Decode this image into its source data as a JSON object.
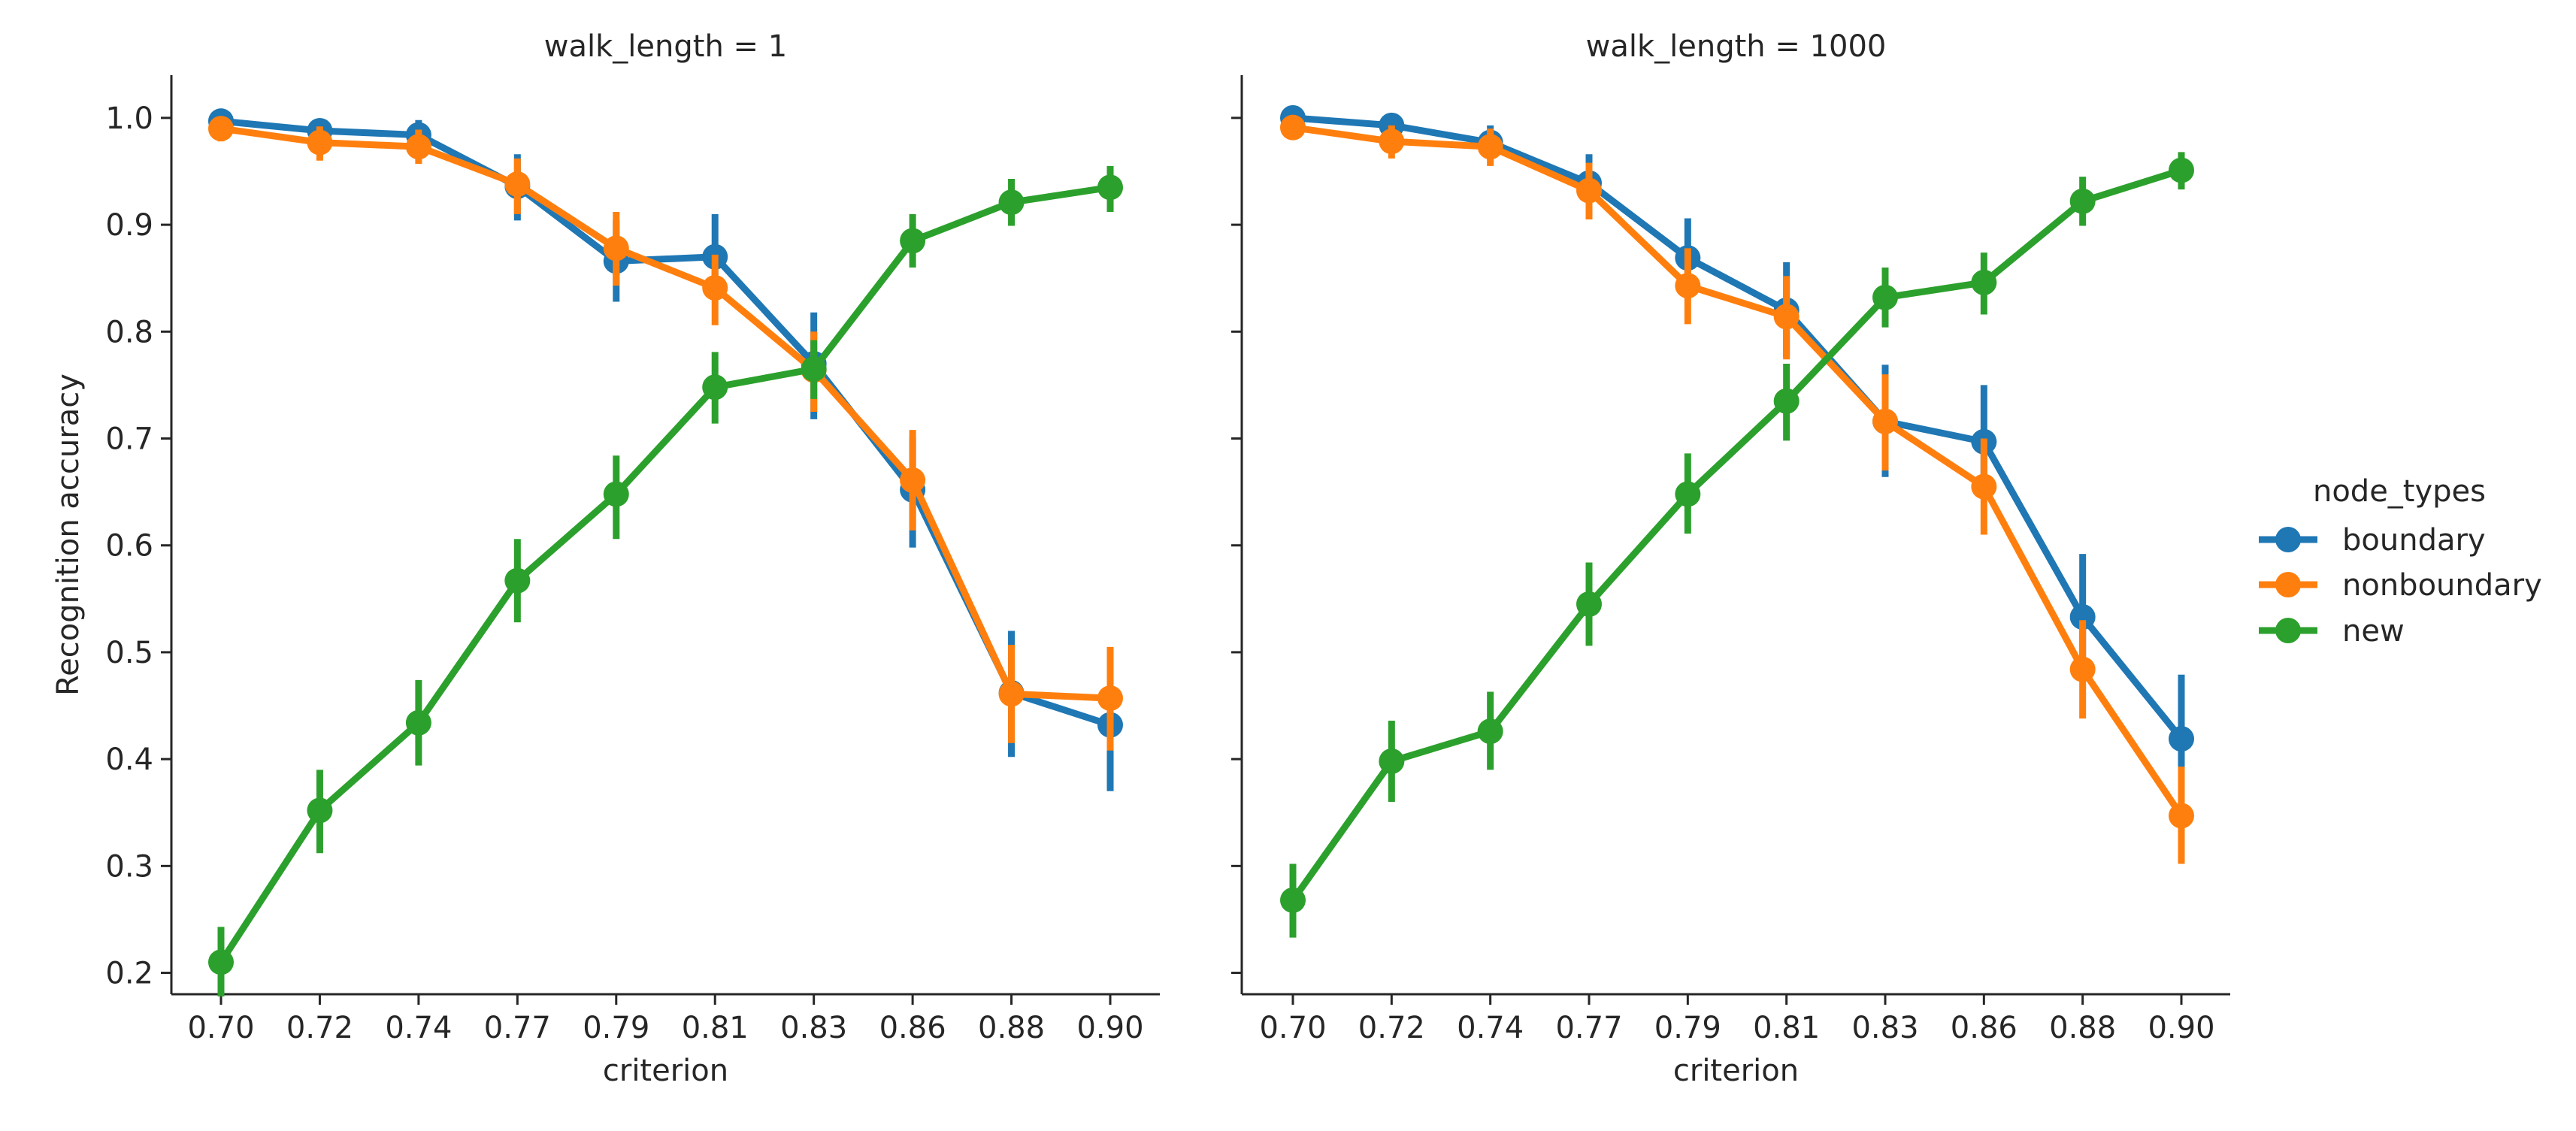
{
  "chart_data": {
    "type": "line",
    "ylabel": "Recognition accuracy",
    "ylim": [
      0.18,
      1.04
    ],
    "yticks": [
      "0.2",
      "0.3",
      "0.4",
      "0.5",
      "0.6",
      "0.7",
      "0.8",
      "0.9",
      "1.0"
    ],
    "xlabel": "criterion",
    "categories": [
      "0.70",
      "0.72",
      "0.74",
      "0.77",
      "0.79",
      "0.81",
      "0.83",
      "0.86",
      "0.88",
      "0.90"
    ],
    "legend": {
      "title": "node_types",
      "placement": "right",
      "entries": [
        "boundary",
        "nonboundary",
        "new"
      ]
    },
    "colors": {
      "boundary": "#1f77b4",
      "nonboundary": "#ff7f0e",
      "new": "#2ca02c"
    },
    "panels": [
      {
        "title": "walk_length = 1",
        "show_ylabel": true,
        "series": [
          {
            "name": "boundary",
            "values": [
              0.997,
              0.988,
              0.984,
              0.936,
              0.866,
              0.87,
              0.77,
              0.652,
              0.462,
              0.432
            ],
            "ci": [
              [
                0.993,
                1.0
              ],
              [
                0.978,
                0.996
              ],
              [
                0.97,
                0.998
              ],
              [
                0.904,
                0.966
              ],
              [
                0.828,
                0.904
              ],
              [
                0.83,
                0.91
              ],
              [
                0.718,
                0.818
              ],
              [
                0.598,
                0.7
              ],
              [
                0.402,
                0.52
              ],
              [
                0.37,
                0.485
              ]
            ]
          },
          {
            "name": "nonboundary",
            "values": [
              0.99,
              0.977,
              0.973,
              0.938,
              0.878,
              0.841,
              0.764,
              0.661,
              0.461,
              0.457
            ],
            "ci": [
              [
                0.978,
                1.0
              ],
              [
                0.96,
                0.992
              ],
              [
                0.957,
                0.989
              ],
              [
                0.91,
                0.962
              ],
              [
                0.843,
                0.912
              ],
              [
                0.806,
                0.872
              ],
              [
                0.725,
                0.8
              ],
              [
                0.614,
                0.708
              ],
              [
                0.415,
                0.507
              ],
              [
                0.408,
                0.505
              ]
            ]
          },
          {
            "name": "new",
            "values": [
              0.21,
              0.352,
              0.434,
              0.567,
              0.648,
              0.748,
              0.765,
              0.885,
              0.921,
              0.935
            ],
            "ci": [
              [
                0.178,
                0.243
              ],
              [
                0.312,
                0.39
              ],
              [
                0.394,
                0.474
              ],
              [
                0.528,
                0.606
              ],
              [
                0.606,
                0.684
              ],
              [
                0.714,
                0.781
              ],
              [
                0.737,
                0.792
              ],
              [
                0.86,
                0.91
              ],
              [
                0.899,
                0.943
              ],
              [
                0.912,
                0.955
              ]
            ]
          }
        ]
      },
      {
        "title": "walk_length = 1000",
        "show_ylabel": false,
        "series": [
          {
            "name": "boundary",
            "values": [
              1.0,
              0.993,
              0.977,
              0.939,
              0.869,
              0.82,
              0.716,
              0.697,
              0.533,
              0.419
            ],
            "ci": [
              [
                0.996,
                1.0
              ],
              [
                0.985,
                1.0
              ],
              [
                0.961,
                0.993
              ],
              [
                0.909,
                0.966
              ],
              [
                0.831,
                0.906
              ],
              [
                0.776,
                0.865
              ],
              [
                0.664,
                0.769
              ],
              [
                0.643,
                0.75
              ],
              [
                0.475,
                0.592
              ],
              [
                0.36,
                0.479
              ]
            ]
          },
          {
            "name": "nonboundary",
            "values": [
              0.991,
              0.978,
              0.973,
              0.932,
              0.843,
              0.814,
              0.716,
              0.655,
              0.484,
              0.347
            ],
            "ci": [
              [
                0.98,
                1.0
              ],
              [
                0.962,
                0.993
              ],
              [
                0.955,
                0.99
              ],
              [
                0.905,
                0.958
              ],
              [
                0.807,
                0.878
              ],
              [
                0.774,
                0.852
              ],
              [
                0.67,
                0.76
              ],
              [
                0.61,
                0.7
              ],
              [
                0.438,
                0.53
              ],
              [
                0.302,
                0.393
              ]
            ]
          },
          {
            "name": "new",
            "values": [
              0.268,
              0.398,
              0.426,
              0.545,
              0.648,
              0.735,
              0.832,
              0.846,
              0.922,
              0.951
            ],
            "ci": [
              [
                0.233,
                0.302
              ],
              [
                0.36,
                0.436
              ],
              [
                0.39,
                0.463
              ],
              [
                0.506,
                0.584
              ],
              [
                0.611,
                0.686
              ],
              [
                0.698,
                0.77
              ],
              [
                0.804,
                0.86
              ],
              [
                0.816,
                0.874
              ],
              [
                0.899,
                0.945
              ],
              [
                0.933,
                0.968
              ]
            ]
          }
        ]
      }
    ]
  }
}
